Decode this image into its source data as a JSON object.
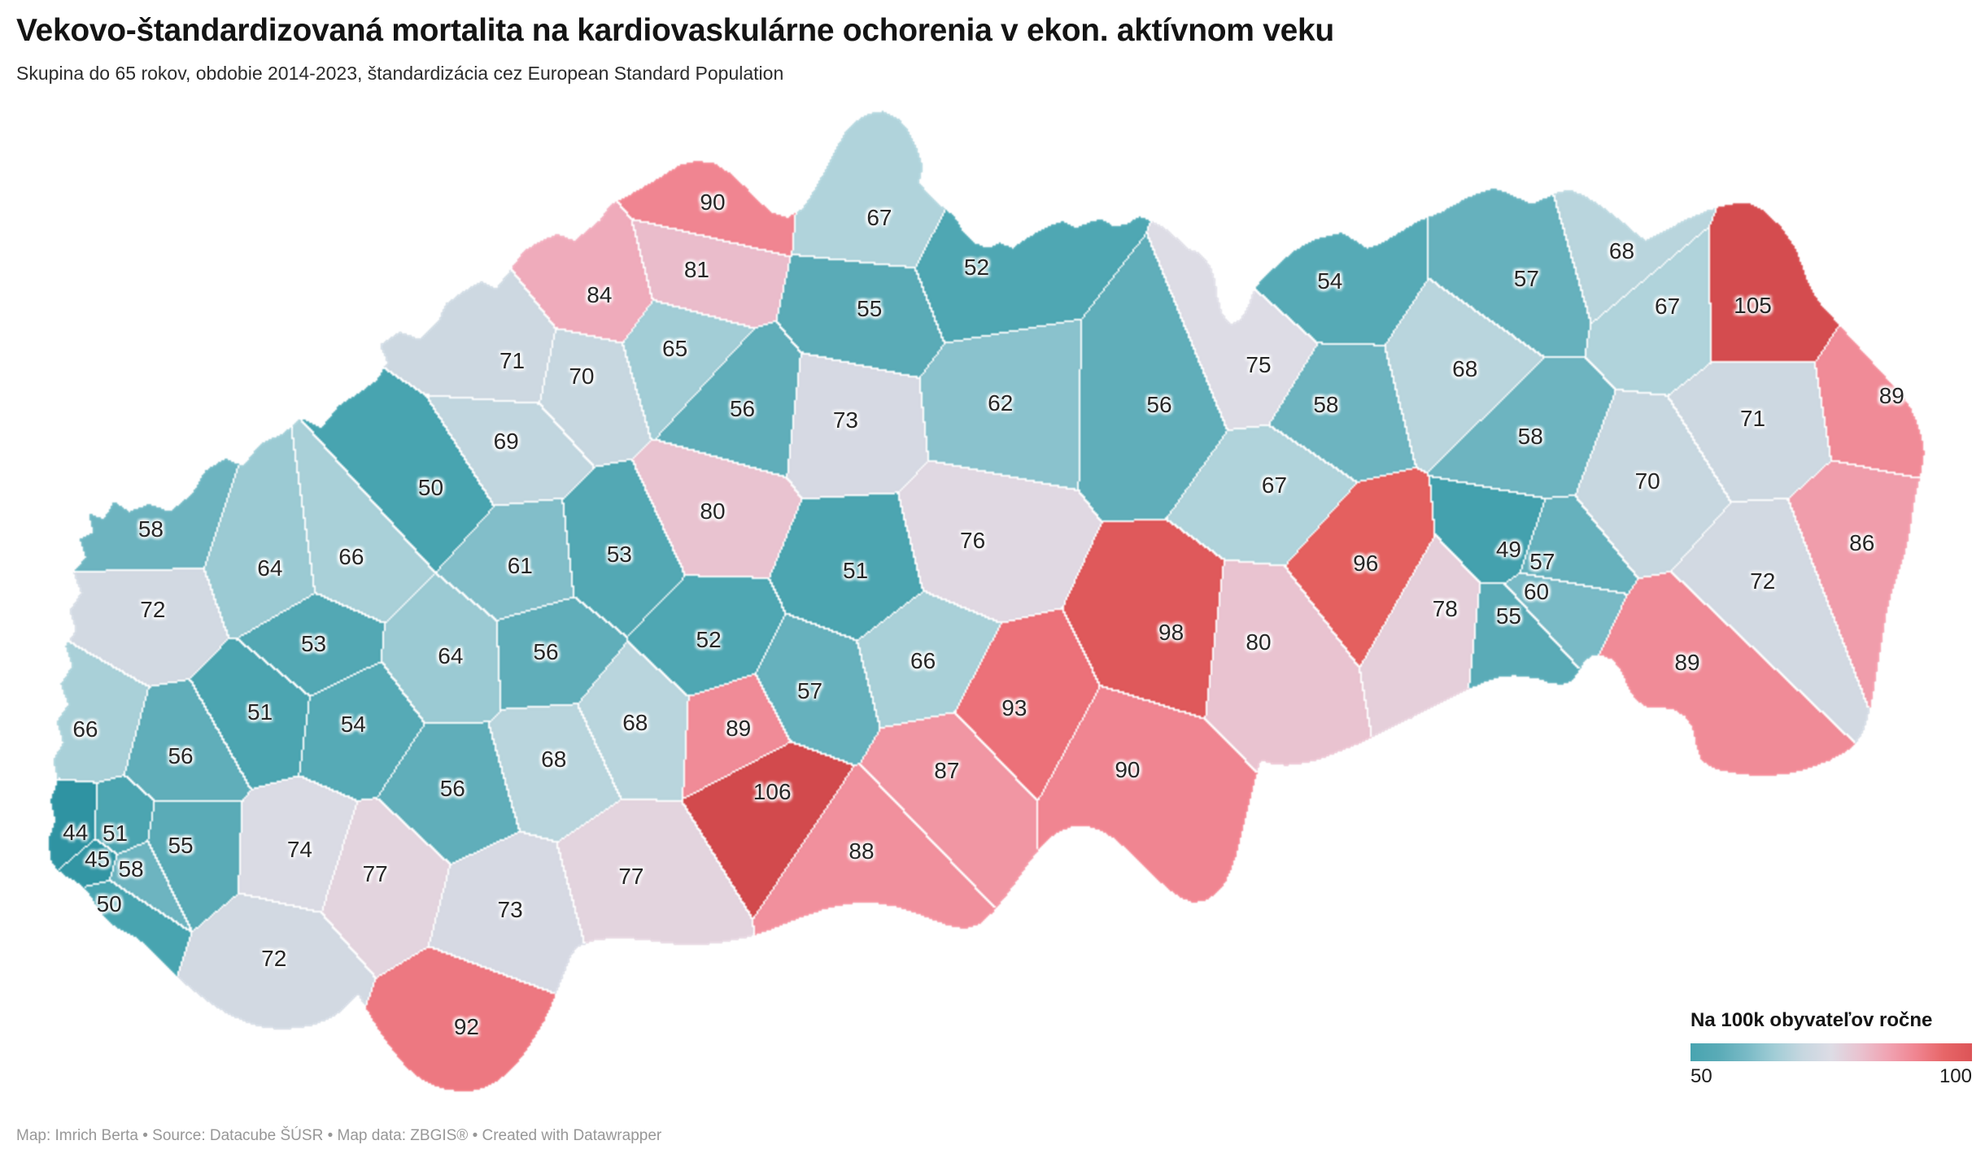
{
  "header": {
    "title": "Vekovo-štandardizovaná mortalita na kardiovaskulárne ochorenia v ekon. aktívnom veku",
    "subtitle": "Skupina do 65 rokov, obdobie 2014-2023, štandardizácia cez European Standard Population"
  },
  "legend": {
    "title": "Na 100k obyvateľov ročne",
    "min_label": "50",
    "max_label": "100",
    "min_value": 50,
    "max_value": 100
  },
  "footer": {
    "text": "Map: Imrich Berta • Source: Datacube ŠÚSR • Map data: ZBGIS® • Created with Datawrapper"
  },
  "chart_data": {
    "type": "choropleth_map",
    "region": "Slovakia, districts (okresy)",
    "title": "Vekovo-štandardizovaná mortalita na kardiovaskulárne ochorenia v ekon. aktívnom veku",
    "subtitle": "Skupina do 65 rokov, obdobie 2014-2023, štandardizácia cez European Standard Population",
    "unit": "na 100k obyvateľov ročne",
    "legend_range": [
      50,
      100
    ],
    "color_stops": [
      [
        44,
        "#2f93a2"
      ],
      [
        50,
        "#48a4b0"
      ],
      [
        55,
        "#5aabb7"
      ],
      [
        60,
        "#79bac6"
      ],
      [
        64,
        "#9bcad3"
      ],
      [
        67,
        "#b0d3db"
      ],
      [
        69,
        "#c1d6df"
      ],
      [
        71,
        "#cdd8e1"
      ],
      [
        73,
        "#d6d9e3"
      ],
      [
        75,
        "#dddce5"
      ],
      [
        77,
        "#e3d4de"
      ],
      [
        79,
        "#e7cad5"
      ],
      [
        81,
        "#eabccb"
      ],
      [
        84,
        "#efabbb"
      ],
      [
        87,
        "#f196a3"
      ],
      [
        90,
        "#f08591"
      ],
      [
        93,
        "#ec7179"
      ],
      [
        96,
        "#e4605f"
      ],
      [
        99,
        "#dd5659"
      ],
      [
        103,
        "#d74f52"
      ],
      [
        106,
        "#d24a4d"
      ]
    ],
    "districts": [
      {
        "value": 90,
        "x": 35.9,
        "y": 17.5
      },
      {
        "value": 81,
        "x": 35.1,
        "y": 23.3
      },
      {
        "value": 84,
        "x": 30.2,
        "y": 25.5
      },
      {
        "value": 67,
        "x": 44.3,
        "y": 18.8
      },
      {
        "value": 52,
        "x": 49.2,
        "y": 23.1
      },
      {
        "value": 55,
        "x": 43.8,
        "y": 26.7
      },
      {
        "value": 65,
        "x": 34.0,
        "y": 30.1
      },
      {
        "value": 71,
        "x": 25.8,
        "y": 31.2
      },
      {
        "value": 70,
        "x": 29.3,
        "y": 32.5
      },
      {
        "value": 69,
        "x": 25.5,
        "y": 38.1
      },
      {
        "value": 56,
        "x": 37.4,
        "y": 35.3
      },
      {
        "value": 73,
        "x": 42.6,
        "y": 36.3
      },
      {
        "value": 62,
        "x": 50.4,
        "y": 34.8
      },
      {
        "value": 56,
        "x": 58.4,
        "y": 35.0
      },
      {
        "value": 54,
        "x": 67.0,
        "y": 24.3
      },
      {
        "value": 57,
        "x": 76.9,
        "y": 24.1
      },
      {
        "value": 75,
        "x": 63.4,
        "y": 31.5
      },
      {
        "value": 68,
        "x": 73.8,
        "y": 31.9
      },
      {
        "value": 68,
        "x": 81.7,
        "y": 21.7
      },
      {
        "value": 67,
        "x": 84.0,
        "y": 26.5
      },
      {
        "value": 105,
        "x": 88.3,
        "y": 26.4
      },
      {
        "value": 89,
        "x": 95.3,
        "y": 34.2
      },
      {
        "value": 58,
        "x": 66.8,
        "y": 35.0
      },
      {
        "value": 58,
        "x": 77.1,
        "y": 37.7
      },
      {
        "value": 71,
        "x": 88.3,
        "y": 36.2
      },
      {
        "value": 70,
        "x": 83.0,
        "y": 41.6
      },
      {
        "value": 67,
        "x": 64.2,
        "y": 41.9
      },
      {
        "value": 96,
        "x": 68.8,
        "y": 48.7
      },
      {
        "value": 50,
        "x": 21.7,
        "y": 42.1
      },
      {
        "value": 58,
        "x": 7.6,
        "y": 45.7
      },
      {
        "value": 64,
        "x": 13.6,
        "y": 49.1
      },
      {
        "value": 66,
        "x": 17.7,
        "y": 48.1
      },
      {
        "value": 72,
        "x": 7.7,
        "y": 52.7
      },
      {
        "value": 61,
        "x": 26.2,
        "y": 48.9
      },
      {
        "value": 53,
        "x": 31.2,
        "y": 47.9
      },
      {
        "value": 80,
        "x": 35.9,
        "y": 44.2
      },
      {
        "value": 51,
        "x": 43.1,
        "y": 49.3
      },
      {
        "value": 76,
        "x": 49.0,
        "y": 46.7
      },
      {
        "value": 80,
        "x": 63.4,
        "y": 55.5
      },
      {
        "value": 98,
        "x": 59.0,
        "y": 54.6
      },
      {
        "value": 78,
        "x": 72.8,
        "y": 52.6
      },
      {
        "value": 49,
        "x": 76.0,
        "y": 47.5
      },
      {
        "value": 57,
        "x": 77.7,
        "y": 48.5
      },
      {
        "value": 60,
        "x": 77.4,
        "y": 51.1
      },
      {
        "value": 55,
        "x": 76.0,
        "y": 53.2
      },
      {
        "value": 89,
        "x": 85.0,
        "y": 57.2
      },
      {
        "value": 72,
        "x": 88.8,
        "y": 50.2
      },
      {
        "value": 86,
        "x": 93.8,
        "y": 46.9
      },
      {
        "value": 66,
        "x": 4.3,
        "y": 63.0
      },
      {
        "value": 53,
        "x": 15.8,
        "y": 55.6
      },
      {
        "value": 51,
        "x": 13.1,
        "y": 61.5
      },
      {
        "value": 54,
        "x": 17.8,
        "y": 62.6
      },
      {
        "value": 56,
        "x": 9.1,
        "y": 65.3
      },
      {
        "value": 64,
        "x": 22.7,
        "y": 56.7
      },
      {
        "value": 56,
        "x": 27.5,
        "y": 56.3
      },
      {
        "value": 52,
        "x": 35.7,
        "y": 55.3
      },
      {
        "value": 57,
        "x": 40.8,
        "y": 59.7
      },
      {
        "value": 66,
        "x": 46.5,
        "y": 57.1
      },
      {
        "value": 93,
        "x": 51.1,
        "y": 61.2
      },
      {
        "value": 87,
        "x": 47.7,
        "y": 66.6
      },
      {
        "value": 90,
        "x": 56.8,
        "y": 66.5
      },
      {
        "value": 89,
        "x": 37.2,
        "y": 62.9
      },
      {
        "value": 106,
        "x": 38.9,
        "y": 68.4
      },
      {
        "value": 68,
        "x": 32.0,
        "y": 62.4
      },
      {
        "value": 68,
        "x": 27.9,
        "y": 65.6
      },
      {
        "value": 56,
        "x": 22.8,
        "y": 68.1
      },
      {
        "value": 44,
        "x": 3.8,
        "y": 71.9
      },
      {
        "value": 51,
        "x": 5.8,
        "y": 72.0
      },
      {
        "value": 45,
        "x": 4.9,
        "y": 74.2
      },
      {
        "value": 58,
        "x": 6.6,
        "y": 75.1
      },
      {
        "value": 50,
        "x": 5.5,
        "y": 78.1
      },
      {
        "value": 55,
        "x": 9.1,
        "y": 73.0
      },
      {
        "value": 74,
        "x": 15.1,
        "y": 73.4
      },
      {
        "value": 77,
        "x": 18.9,
        "y": 75.5
      },
      {
        "value": 73,
        "x": 25.7,
        "y": 78.6
      },
      {
        "value": 77,
        "x": 31.8,
        "y": 75.7
      },
      {
        "value": 88,
        "x": 43.4,
        "y": 73.5
      },
      {
        "value": 72,
        "x": 13.8,
        "y": 82.8
      },
      {
        "value": 92,
        "x": 23.5,
        "y": 88.7
      }
    ]
  }
}
